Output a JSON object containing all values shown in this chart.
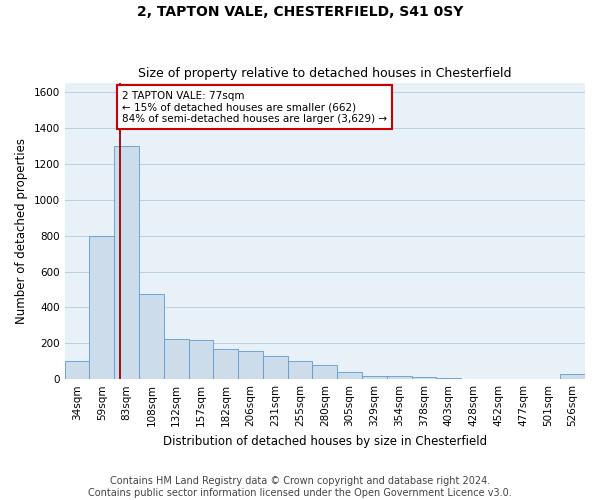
{
  "title": "2, TAPTON VALE, CHESTERFIELD, S41 0SY",
  "subtitle": "Size of property relative to detached houses in Chesterfield",
  "xlabel": "Distribution of detached houses by size in Chesterfield",
  "ylabel": "Number of detached properties",
  "footnote1": "Contains HM Land Registry data © Crown copyright and database right 2024.",
  "footnote2": "Contains public sector information licensed under the Open Government Licence v3.0.",
  "bar_values": [
    100,
    800,
    1300,
    475,
    225,
    220,
    170,
    160,
    130,
    100,
    80,
    40,
    20,
    15,
    10,
    8,
    0,
    0,
    0,
    0,
    30
  ],
  "bin_labels": [
    "34sqm",
    "59sqm",
    "83sqm",
    "108sqm",
    "132sqm",
    "157sqm",
    "182sqm",
    "206sqm",
    "231sqm",
    "255sqm",
    "280sqm",
    "305sqm",
    "329sqm",
    "354sqm",
    "378sqm",
    "403sqm",
    "428sqm",
    "452sqm",
    "477sqm",
    "501sqm",
    "526sqm"
  ],
  "bar_color": "#ccdceb",
  "bar_edge_color": "#5b9bd5",
  "bar_width": 1.0,
  "ylim": [
    0,
    1650
  ],
  "yticks": [
    0,
    200,
    400,
    600,
    800,
    1000,
    1200,
    1400,
    1600
  ],
  "grid_color": "#b8cfe0",
  "bg_color": "#e8f0f8",
  "vline_x": 1.72,
  "vline_color": "#990000",
  "annotation_text": "2 TAPTON VALE: 77sqm\n← 15% of detached houses are smaller (662)\n84% of semi-detached houses are larger (3,629) →",
  "annotation_box_facecolor": "#ffffff",
  "annotation_box_edgecolor": "#cc0000",
  "title_fontsize": 10,
  "subtitle_fontsize": 9,
  "axis_label_fontsize": 8.5,
  "tick_fontsize": 7.5,
  "annotation_fontsize": 7.5,
  "footnote_fontsize": 7
}
